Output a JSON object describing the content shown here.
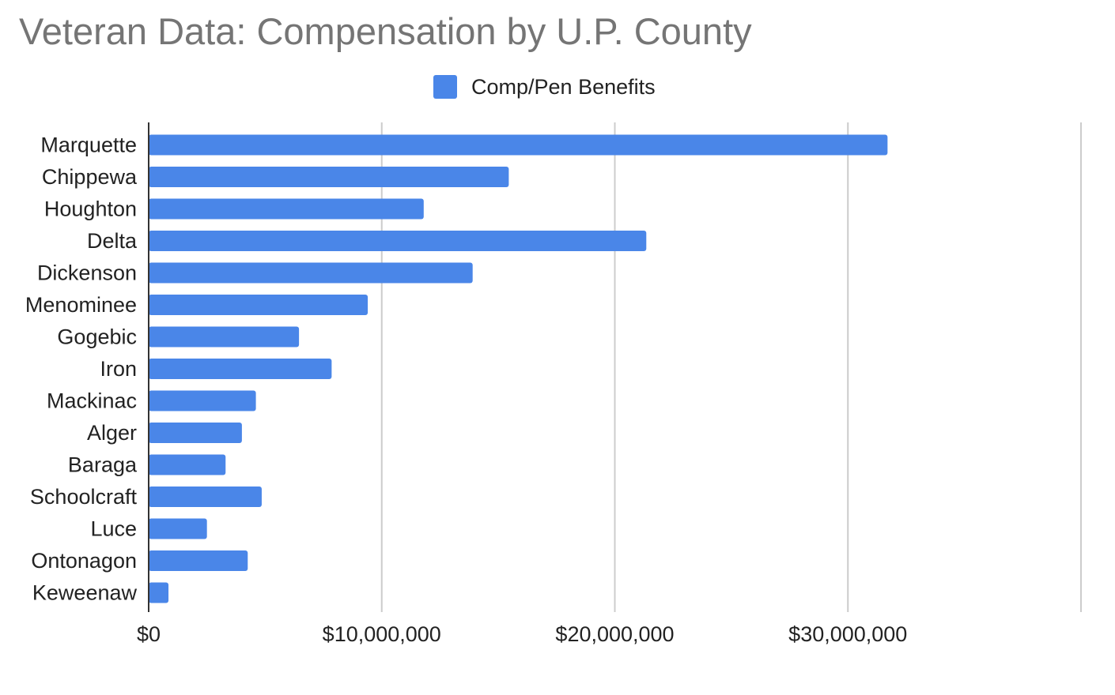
{
  "chart_data": {
    "type": "bar",
    "orientation": "horizontal",
    "title": "Veteran Data: Compensation by U.P. County",
    "xlabel": "",
    "ylabel": "",
    "categories": [
      "Marquette",
      "Chippewa",
      "Houghton",
      "Delta",
      "Dickenson",
      "Menominee",
      "Gogebic",
      "Iron",
      "Mackinac",
      "Alger",
      "Baraga",
      "Schoolcraft",
      "Luce",
      "Ontonagon",
      "Keweenaw"
    ],
    "series": [
      {
        "name": "Comp/Pen Benefits",
        "color": "#4a86e8",
        "values": [
          31700000,
          15450000,
          11800000,
          21350000,
          13900000,
          9400000,
          6450000,
          7850000,
          4600000,
          4000000,
          3300000,
          4850000,
          2500000,
          4250000,
          850000
        ]
      }
    ],
    "xlim": [
      0,
      40000000
    ],
    "xticks": [
      0,
      10000000,
      20000000,
      30000000
    ],
    "xtick_labels": [
      "$0",
      "$10,000,000",
      "$20,000,000",
      "$30,000,000"
    ],
    "grid": true,
    "legend_position": "top"
  }
}
